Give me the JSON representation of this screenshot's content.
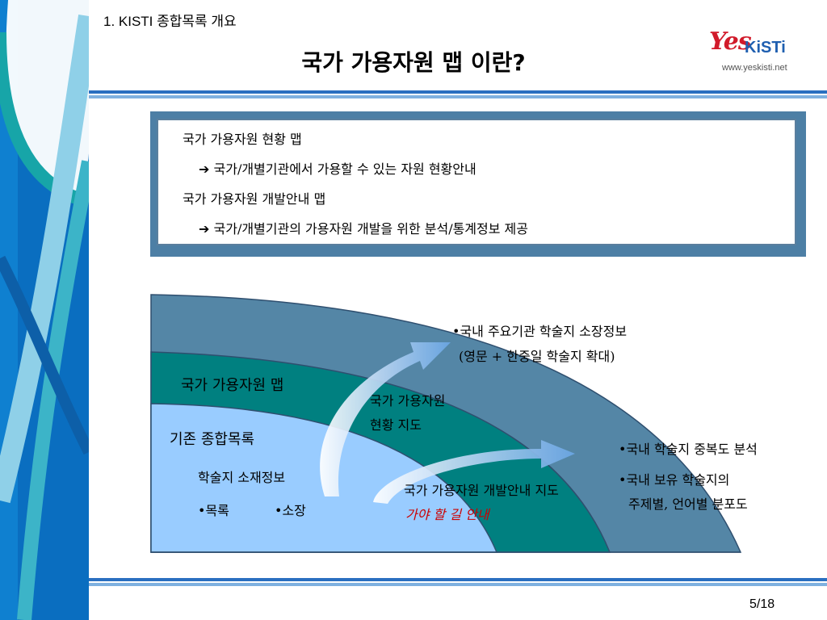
{
  "header": {
    "section": "1. KISTI 종합목록 개요",
    "title": "국가 가용자원 맵 이란?"
  },
  "logo": {
    "yes": "Yes",
    "kisti": "KiSTi",
    "url": "www.yeskisti.net"
  },
  "info_box": {
    "line1": "국가 가용자원 현황 맵",
    "line2": "국가/개별기관에서 가용할 수 있는 자원 현황안내",
    "line3": "국가 가용자원 개발안내 맵",
    "line4": "국가/개별기관의 가용자원 개발을 위한  분석/통계정보 제공",
    "arrow": "➔"
  },
  "diagram": {
    "outer_label": "국가 가용자원 맵",
    "inner_label": "기존 종합목록",
    "inner_sub": "학술지 소재정보",
    "inner_item1": "•목록",
    "inner_item2": "•소장",
    "mid_label1": "국가 가용자원",
    "mid_label2": "현황 지도",
    "dev_label": "국가 가용자원 개발안내 지도",
    "dev_sub": "가야 할 길 안내",
    "note1_line1": "•국내 주요기관 학술지 소장정보",
    "note1_line2": "(영문 +  한중일 학술지 확대)",
    "note2_line1": "•국내 학술지 중복도 분석",
    "note2_line2": "•국내 보유 학술지의",
    "note2_line3": "주제별, 언어별 분포도"
  },
  "page": "5/18",
  "colors": {
    "blue_band": "#0a6ec0",
    "teal": "#008080",
    "steel": "#5486a6",
    "light_blue": "#99ccff",
    "dev_sub_red": "#cc0000"
  }
}
